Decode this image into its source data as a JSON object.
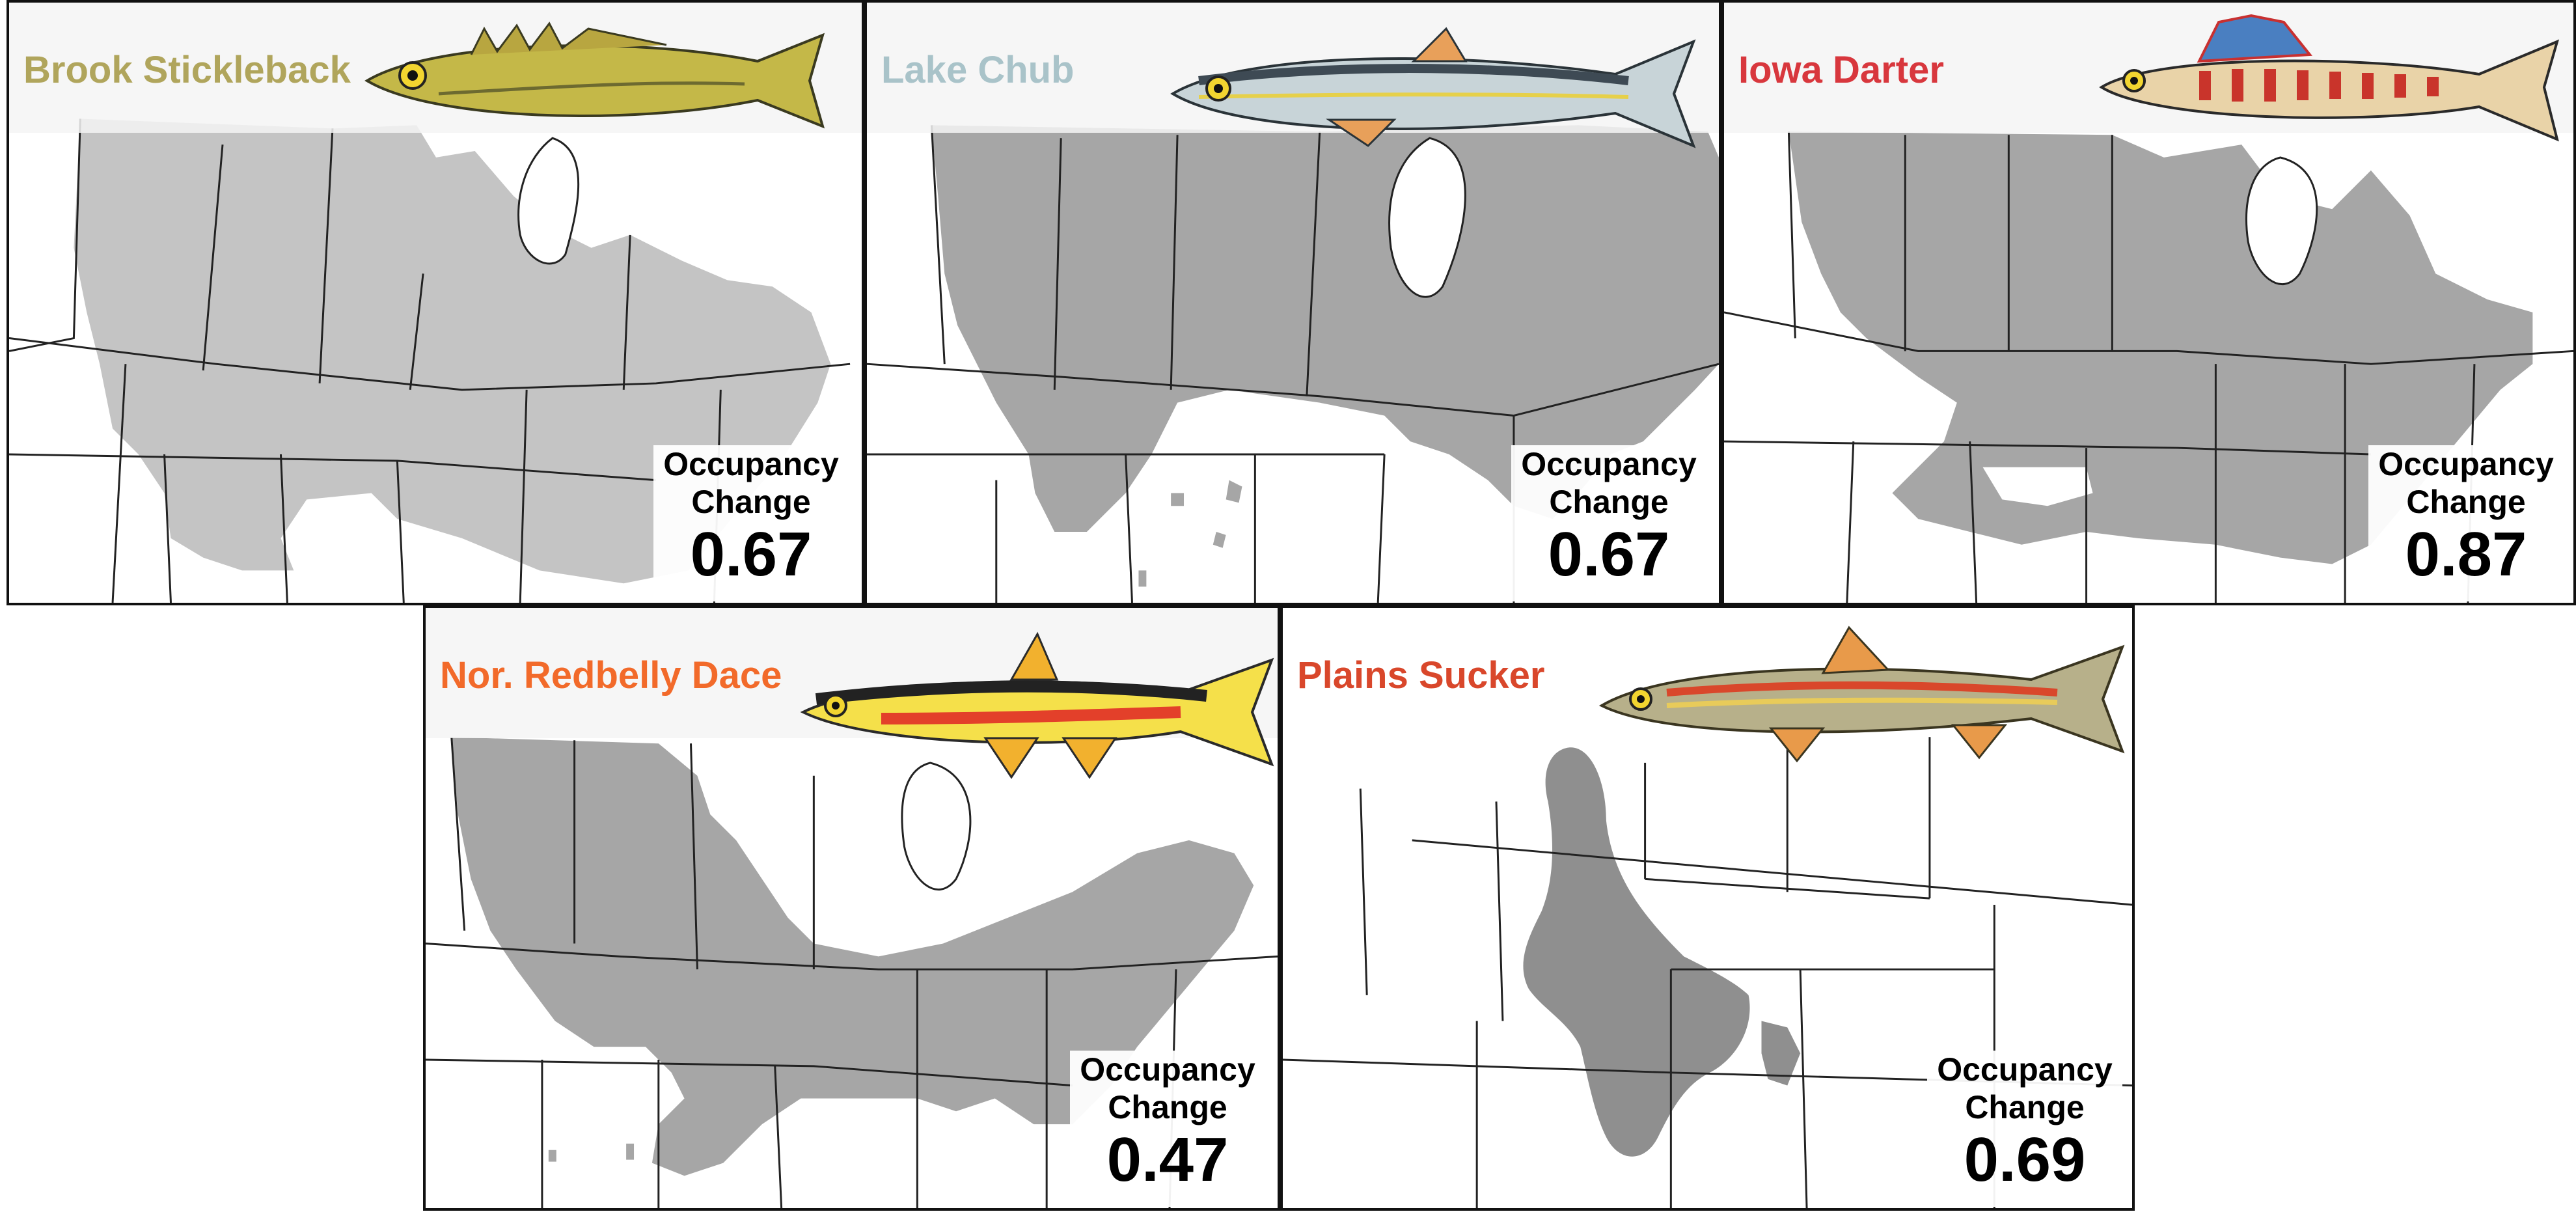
{
  "occupancy_label_line1": "Occupancy",
  "occupancy_label_line2": "Change",
  "panels": [
    {
      "species": "Brook Stickleback",
      "species_color": "#b0a55c",
      "range_fill": "#c4c4c4",
      "fish_icon": "brook-stickleback-illustration",
      "occupancy_change": "0.67"
    },
    {
      "species": "Lake Chub",
      "species_color": "#a9c3c9",
      "range_fill": "#a6a6a6",
      "fish_icon": "lake-chub-illustration",
      "occupancy_change": "0.67"
    },
    {
      "species": "Iowa Darter",
      "species_color": "#d8373d",
      "range_fill": "#a6a6a6",
      "fish_icon": "iowa-darter-illustration",
      "occupancy_change": "0.87"
    },
    {
      "species": "Nor. Redbelly Dace",
      "species_color": "#f26a2a",
      "range_fill": "#a6a6a6",
      "fish_icon": "northern-redbelly-dace-illustration",
      "occupancy_change": "0.47"
    },
    {
      "species": "Plains Sucker",
      "species_color": "#d9472b",
      "range_fill": "#8f8f8f",
      "fish_icon": "plains-sucker-illustration",
      "occupancy_change": "0.69"
    }
  ]
}
